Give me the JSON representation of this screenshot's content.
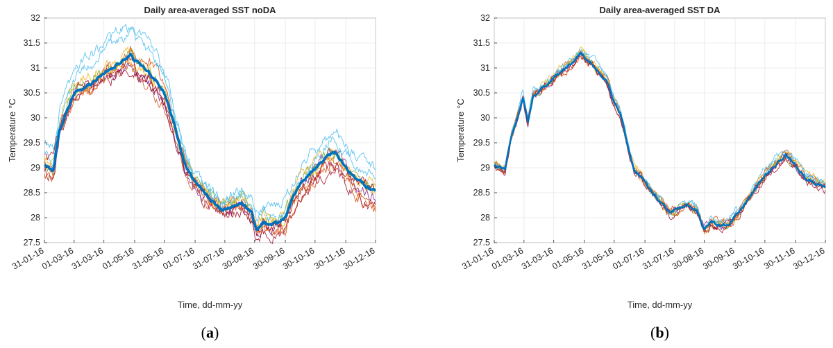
{
  "chart_data": [
    {
      "type": "line",
      "panel_label": {
        "open": "(",
        "letter": "a",
        "close": ")"
      },
      "title": "Daily area-averaged SST noDA",
      "xlabel": "Time, dd-mm-yy",
      "ylabel": "Temperature",
      "ylabel_unit": "°C",
      "ylim": [
        27.5,
        32
      ],
      "yticks": [
        "27.5",
        "28",
        "28.5",
        "29",
        "29.5",
        "30",
        "30.5",
        "31",
        "31.5",
        "32"
      ],
      "xlim_days": [
        31,
        365
      ],
      "xticks": [
        "31-01-16",
        "01-03-16",
        "31-03-16",
        "01-05-16",
        "31-05-16",
        "01-07-16",
        "31-07-16",
        "30-08-16",
        "30-09-16",
        "30-10-16",
        "30-11-16",
        "30-12-16"
      ],
      "xtick_days": [
        31,
        61,
        91,
        122,
        152,
        183,
        213,
        243,
        274,
        304,
        335,
        365
      ],
      "grid": true,
      "legend": "none",
      "mean": {
        "color": "#0072BD",
        "points": [
          [
            31,
            29.05
          ],
          [
            40,
            28.95
          ],
          [
            46,
            29.7
          ],
          [
            55,
            30.2
          ],
          [
            62,
            30.5
          ],
          [
            70,
            30.6
          ],
          [
            80,
            30.7
          ],
          [
            90,
            30.9
          ],
          [
            100,
            31.0
          ],
          [
            110,
            31.15
          ],
          [
            118,
            31.25
          ],
          [
            125,
            31.1
          ],
          [
            135,
            30.95
          ],
          [
            145,
            30.7
          ],
          [
            152,
            30.5
          ],
          [
            160,
            30.0
          ],
          [
            168,
            29.4
          ],
          [
            174,
            29.0
          ],
          [
            182,
            28.75
          ],
          [
            192,
            28.5
          ],
          [
            202,
            28.3
          ],
          [
            210,
            28.15
          ],
          [
            220,
            28.2
          ],
          [
            230,
            28.3
          ],
          [
            240,
            28.1
          ],
          [
            245,
            27.75
          ],
          [
            252,
            27.9
          ],
          [
            260,
            27.85
          ],
          [
            268,
            27.9
          ],
          [
            275,
            28.05
          ],
          [
            282,
            28.4
          ],
          [
            290,
            28.7
          ],
          [
            300,
            28.9
          ],
          [
            310,
            29.1
          ],
          [
            318,
            29.25
          ],
          [
            325,
            29.3
          ],
          [
            335,
            29.0
          ],
          [
            345,
            28.8
          ],
          [
            355,
            28.65
          ],
          [
            365,
            28.55
          ]
        ]
      },
      "members": {
        "colors": [
          "#D95319",
          "#EDB120",
          "#7E2F8E",
          "#77AC30",
          "#4DBEEE",
          "#A2142F",
          "#D95319",
          "#EDB120",
          "#4DBEEE",
          "#A2142F"
        ],
        "offsets": [
          [
            -0.1,
            0.0,
            -0.2,
            -0.3,
            -0.1,
            0.0,
            -0.15,
            -0.3,
            -0.2,
            -0.45
          ],
          [
            0.1,
            0.2,
            0.1,
            0.0,
            0.0,
            -0.05,
            0.0,
            -0.1,
            0.0,
            0.05
          ],
          [
            0.05,
            -0.1,
            -0.2,
            -0.25,
            -0.1,
            0.0,
            -0.05,
            0.0,
            0.1,
            -0.2
          ],
          [
            0.0,
            0.1,
            0.0,
            0.05,
            0.1,
            0.05,
            0.1,
            0.1,
            0.0,
            0.1
          ],
          [
            0.45,
            0.55,
            0.6,
            0.55,
            0.2,
            0.2,
            0.35,
            0.3,
            0.45,
            0.5
          ],
          [
            -0.15,
            -0.05,
            -0.25,
            -0.2,
            -0.1,
            -0.1,
            -0.2,
            -0.25,
            -0.35,
            -0.3
          ],
          [
            -0.2,
            -0.1,
            0.1,
            0.2,
            0.05,
            0.0,
            -0.1,
            -0.2,
            -0.1,
            -0.35
          ],
          [
            0.15,
            0.0,
            -0.1,
            -0.1,
            0.05,
            0.1,
            0.1,
            0.15,
            -0.05,
            0.0
          ],
          [
            0.25,
            0.35,
            0.45,
            0.4,
            0.1,
            0.1,
            0.2,
            0.1,
            0.3,
            0.3
          ],
          [
            0.2,
            0.1,
            -0.15,
            -0.2,
            0.0,
            -0.05,
            -0.1,
            -0.1,
            -0.2,
            0.1
          ]
        ],
        "noise": 0.09
      }
    },
    {
      "type": "line",
      "panel_label": {
        "open": "(",
        "letter": "b",
        "close": ")"
      },
      "title": "Daily area-averaged SST DA",
      "xlabel": "Time, dd-mm-yy",
      "ylabel": "Temperature",
      "ylabel_unit": "°C",
      "ylim": [
        27.5,
        32
      ],
      "yticks": [
        "27.5",
        "28",
        "28.5",
        "29",
        "29.5",
        "30",
        "30.5",
        "31",
        "31.5",
        "32"
      ],
      "xlim_days": [
        31,
        365
      ],
      "xticks": [
        "31-01-16",
        "01-03-16",
        "31-03-16",
        "01-05-16",
        "31-05-16",
        "01-07-16",
        "31-07-16",
        "30-08-16",
        "30-09-16",
        "30-10-16",
        "30-11-16",
        "30-12-16"
      ],
      "xtick_days": [
        31,
        61,
        91,
        122,
        152,
        183,
        213,
        243,
        274,
        304,
        335,
        365
      ],
      "grid": true,
      "legend": "none",
      "mean": {
        "color": "#0072BD",
        "points": [
          [
            31,
            29.05
          ],
          [
            42,
            28.95
          ],
          [
            48,
            29.6
          ],
          [
            56,
            30.1
          ],
          [
            60,
            30.4
          ],
          [
            65,
            29.9
          ],
          [
            70,
            30.45
          ],
          [
            80,
            30.6
          ],
          [
            90,
            30.75
          ],
          [
            100,
            30.95
          ],
          [
            110,
            31.1
          ],
          [
            118,
            31.3
          ],
          [
            125,
            31.15
          ],
          [
            135,
            30.95
          ],
          [
            145,
            30.7
          ],
          [
            150,
            30.4
          ],
          [
            158,
            30.1
          ],
          [
            165,
            29.5
          ],
          [
            172,
            28.95
          ],
          [
            180,
            28.8
          ],
          [
            190,
            28.5
          ],
          [
            200,
            28.3
          ],
          [
            208,
            28.1
          ],
          [
            215,
            28.15
          ],
          [
            225,
            28.25
          ],
          [
            235,
            28.15
          ],
          [
            243,
            27.75
          ],
          [
            250,
            27.9
          ],
          [
            258,
            27.85
          ],
          [
            268,
            27.85
          ],
          [
            275,
            28.05
          ],
          [
            285,
            28.3
          ],
          [
            295,
            28.6
          ],
          [
            305,
            28.85
          ],
          [
            315,
            29.05
          ],
          [
            325,
            29.25
          ],
          [
            335,
            29.05
          ],
          [
            345,
            28.8
          ],
          [
            355,
            28.7
          ],
          [
            365,
            28.6
          ]
        ]
      },
      "members": {
        "colors": [
          "#D95319",
          "#EDB120",
          "#7E2F8E",
          "#77AC30",
          "#4DBEEE",
          "#A2142F",
          "#D95319",
          "#EDB120",
          "#4DBEEE",
          "#A2142F"
        ],
        "offsets": [
          [
            0.02,
            -0.03,
            0.05,
            0.0,
            0.0,
            0.02,
            -0.02,
            0.0,
            0.03,
            0.0
          ],
          [
            0.0,
            0.05,
            0.03,
            0.08,
            0.02,
            0.0,
            0.02,
            0.05,
            0.06,
            0.04
          ],
          [
            -0.02,
            0.0,
            -0.03,
            0.0,
            -0.02,
            0.0,
            0.02,
            -0.02,
            0.0,
            -0.02
          ],
          [
            0.03,
            0.02,
            0.0,
            -0.02,
            0.02,
            0.03,
            0.0,
            0.02,
            -0.03,
            0.02
          ],
          [
            0.05,
            0.08,
            0.05,
            0.1,
            0.03,
            0.02,
            0.05,
            0.08,
            0.1,
            0.05
          ],
          [
            -0.03,
            -0.05,
            0.0,
            -0.05,
            -0.02,
            -0.02,
            -0.05,
            -0.05,
            -0.02,
            -0.04
          ],
          [
            0.0,
            0.03,
            -0.05,
            0.05,
            0.0,
            -0.03,
            0.03,
            0.03,
            0.05,
            0.0
          ],
          [
            0.04,
            0.0,
            0.06,
            0.05,
            0.03,
            0.0,
            0.0,
            0.0,
            0.08,
            0.06
          ],
          [
            0.02,
            0.05,
            0.08,
            0.12,
            0.02,
            0.03,
            0.04,
            0.06,
            0.12,
            0.03
          ],
          [
            -0.04,
            0.02,
            0.02,
            -0.03,
            -0.03,
            0.0,
            -0.03,
            0.02,
            -0.05,
            -0.03
          ]
        ],
        "noise": 0.06
      }
    }
  ]
}
